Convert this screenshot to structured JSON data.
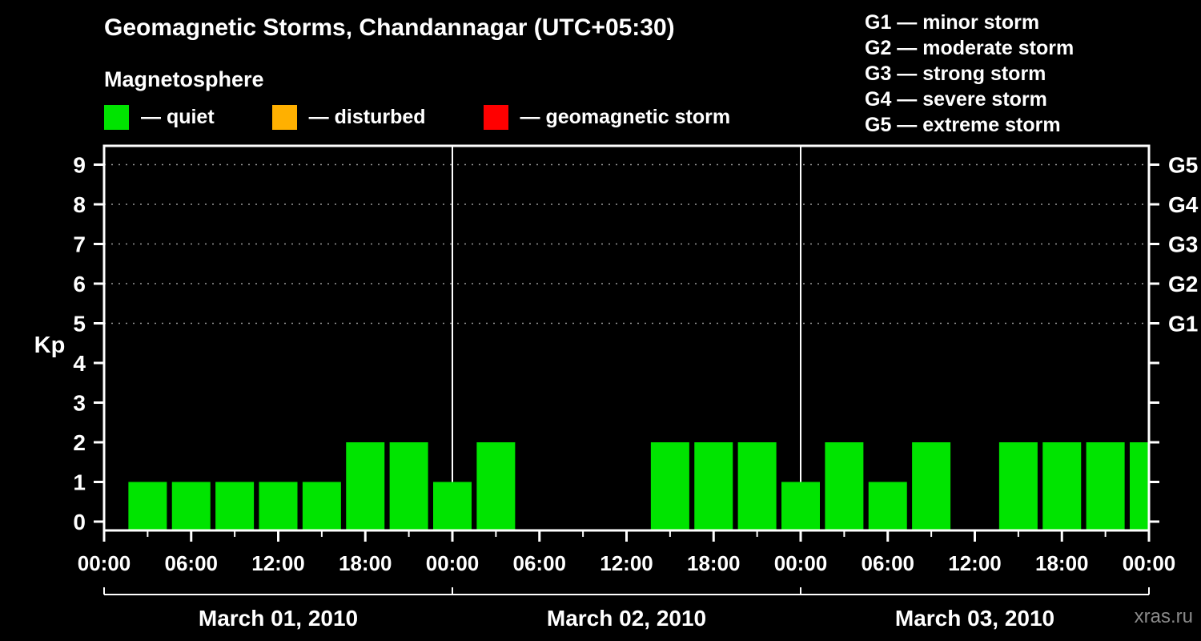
{
  "page": {
    "bg": "#000000",
    "watermark": "xras.ru"
  },
  "header": {
    "title": "Geomagnetic Storms, Chandannagar (UTC+05:30)",
    "subtitle": "Magnetosphere"
  },
  "legend": {
    "items": [
      {
        "key": "quiet",
        "label": "— quiet",
        "color": "#00e400"
      },
      {
        "key": "disturbed",
        "label": "— disturbed",
        "color": "#ffb000"
      },
      {
        "key": "storm",
        "label": "— geomagnetic storm",
        "color": "#ff0000"
      }
    ]
  },
  "g_legend": {
    "items": [
      "G1 — minor storm",
      "G2 — moderate storm",
      "G3 — strong storm",
      "G4 — severe storm",
      "G5 — extreme storm"
    ]
  },
  "chart_data": {
    "type": "bar",
    "title": "Geomagnetic Storms, Chandannagar (UTC+05:30)",
    "ylabel": "Kp",
    "xlabel": "",
    "ylim": [
      0,
      9
    ],
    "y_ticks": [
      0,
      1,
      2,
      3,
      4,
      5,
      6,
      7,
      8,
      9
    ],
    "right_axis": [
      {
        "kp": 9,
        "label": "G5"
      },
      {
        "kp": 8,
        "label": "G4"
      },
      {
        "kp": 7,
        "label": "G3"
      },
      {
        "kp": 6,
        "label": "G2"
      },
      {
        "kp": 5,
        "label": "G1"
      }
    ],
    "grid_levels": [
      5,
      6,
      7,
      8,
      9
    ],
    "legend_position": "top",
    "hours_per_slot": 3,
    "x_tick_labels": [
      "00:00",
      "06:00",
      "12:00",
      "18:00",
      "00:00",
      "06:00",
      "12:00",
      "18:00",
      "00:00",
      "06:00",
      "12:00",
      "18:00",
      "00:00"
    ],
    "days": [
      {
        "date": "March 01, 2010",
        "kp": [
          0,
          1,
          1,
          1,
          1,
          1,
          2,
          2
        ]
      },
      {
        "date": "March 02, 2010",
        "kp": [
          1,
          2,
          0,
          0,
          0,
          2,
          2,
          2
        ]
      },
      {
        "date": "March 03, 2010",
        "kp": [
          1,
          2,
          1,
          2,
          0,
          2,
          2,
          2
        ]
      }
    ],
    "next_day_first_kp": 2,
    "bar_colors": {
      "quiet": "#00e400",
      "disturbed": "#ffb000",
      "storm": "#ff0000"
    },
    "color_thresholds": {
      "disturbed_kp": 4,
      "storm_min_kp": 5
    }
  }
}
